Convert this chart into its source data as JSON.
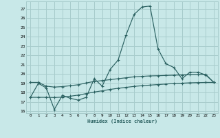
{
  "bg_color": "#c8e8e8",
  "grid_color": "#a8cccc",
  "line_color": "#2a6060",
  "xlim": [
    -0.5,
    23.5
  ],
  "ylim": [
    15.8,
    27.8
  ],
  "yticks": [
    16,
    17,
    18,
    19,
    20,
    21,
    22,
    23,
    24,
    25,
    26,
    27
  ],
  "xticks": [
    0,
    1,
    2,
    3,
    4,
    5,
    6,
    7,
    8,
    9,
    10,
    11,
    12,
    13,
    14,
    15,
    16,
    17,
    18,
    19,
    20,
    21,
    22,
    23
  ],
  "xlabel": "Humidex (Indice chaleur)",
  "curve1_y": [
    17.5,
    19.0,
    18.5,
    16.2,
    17.7,
    17.4,
    17.2,
    17.5,
    19.5,
    18.7,
    20.5,
    21.5,
    24.2,
    26.4,
    27.2,
    27.3,
    22.7,
    21.1,
    20.7,
    19.5,
    20.2,
    20.2,
    19.9,
    19.1
  ],
  "curve2_y": [
    19.1,
    19.1,
    18.7,
    18.6,
    18.65,
    18.75,
    18.85,
    19.05,
    19.2,
    19.3,
    19.4,
    19.5,
    19.6,
    19.7,
    19.75,
    19.8,
    19.82,
    19.85,
    19.88,
    19.9,
    19.92,
    19.93,
    19.95,
    19.1
  ],
  "curve3_y": [
    17.5,
    17.5,
    17.5,
    17.48,
    17.52,
    17.62,
    17.74,
    17.9,
    18.07,
    18.2,
    18.35,
    18.47,
    18.57,
    18.67,
    18.75,
    18.81,
    18.87,
    18.93,
    18.98,
    19.02,
    19.06,
    19.08,
    19.1,
    19.1
  ]
}
